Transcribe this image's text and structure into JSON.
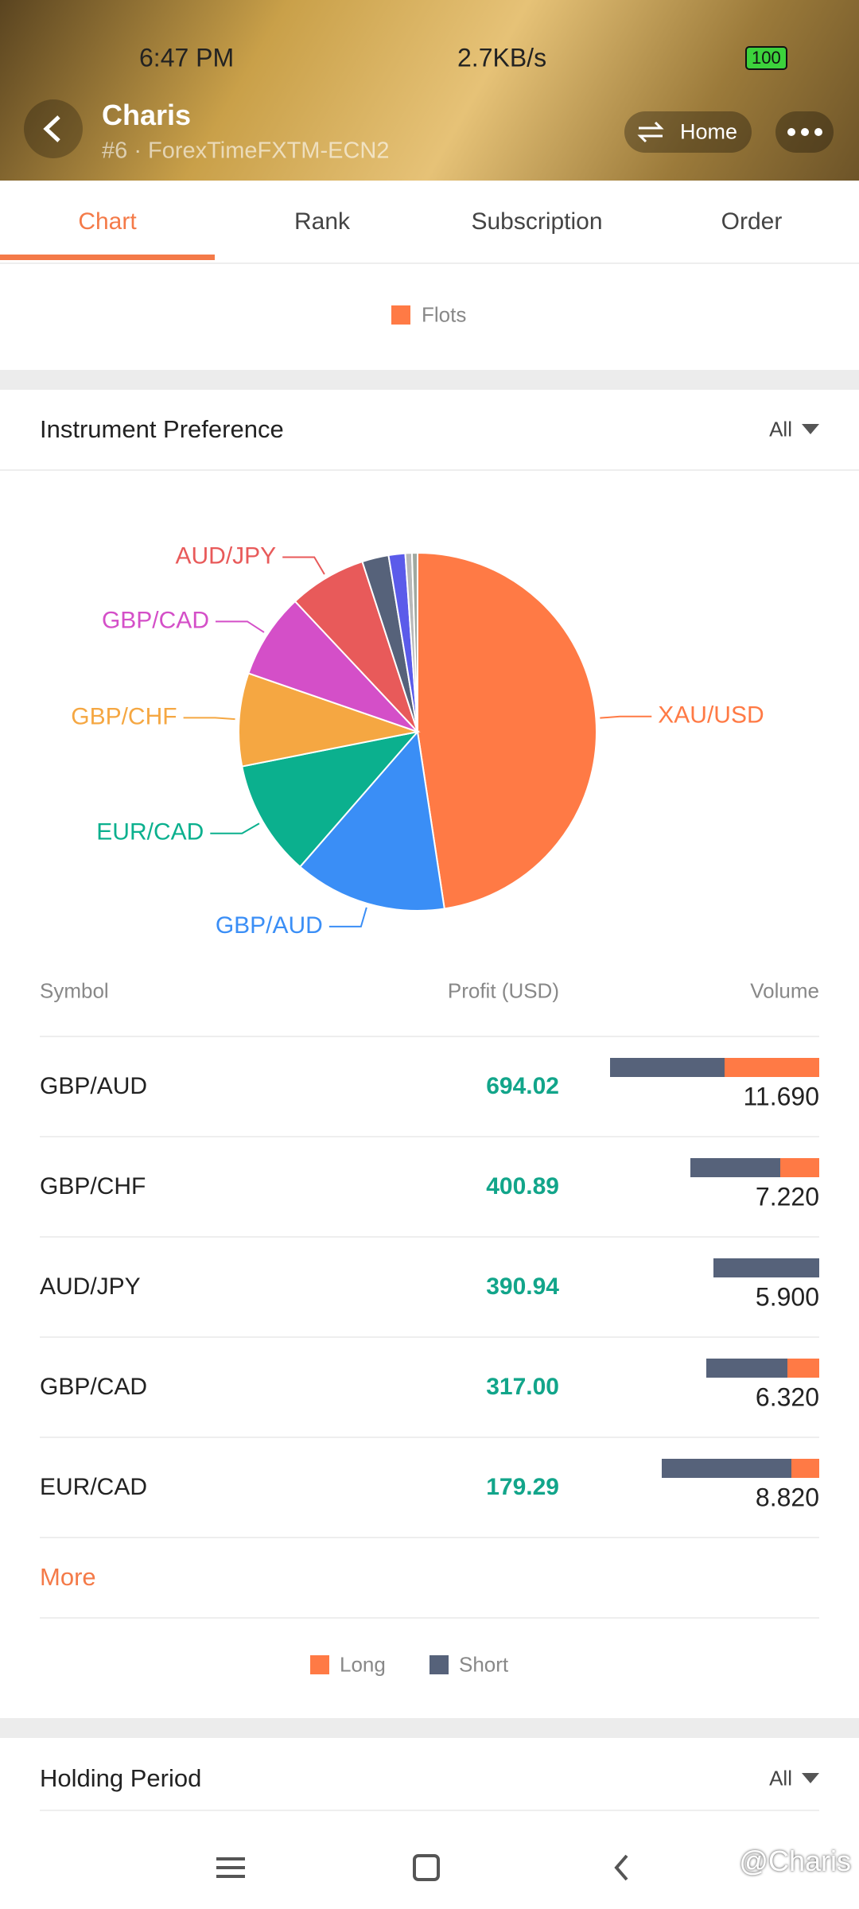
{
  "status_bar": {
    "time": "6:47 PM",
    "speed": "2.7KB/s",
    "battery": "100"
  },
  "header": {
    "name": "Charis",
    "subtitle": "#6 · ForexTimeFXTM-ECN2",
    "home": "Home"
  },
  "tabs": [
    "Chart",
    "Rank",
    "Subscription",
    "Order"
  ],
  "chart_legend": {
    "name": "Flots",
    "color": "#ff7a45"
  },
  "instrument_preference": {
    "title": "Instrument Preference",
    "filter": "All",
    "chart_data": {
      "type": "pie",
      "labels": [
        "XAU/USD",
        "GBP/AUD",
        "EUR/CAD",
        "GBP/CHF",
        "GBP/CAD",
        "AUD/JPY",
        null,
        null,
        null,
        null
      ],
      "values": [
        47.6,
        13.8,
        10.5,
        8.4,
        7.7,
        7.0,
        2.4,
        1.5,
        0.6,
        0.5
      ],
      "colors": [
        "#ff7a45",
        "#3a8ef6",
        "#0bb08e",
        "#f5a742",
        "#d44fc8",
        "#e85a5a",
        "#56627a",
        "#5b5bea",
        "#b8b8b8",
        "#a0a8a0"
      ]
    },
    "table": {
      "columns": [
        "Symbol",
        "Profit (USD)",
        "Volume"
      ],
      "rows": [
        {
          "symbol": "GBP/AUD",
          "profit": "694.02",
          "volume": "11.690",
          "long": 5.3,
          "short": 6.39
        },
        {
          "symbol": "GBP/CHF",
          "profit": "400.89",
          "volume": "7.220",
          "long": 2.19,
          "short": 5.03
        },
        {
          "symbol": "AUD/JPY",
          "profit": "390.94",
          "volume": "5.900",
          "long": 0,
          "short": 5.9
        },
        {
          "symbol": "GBP/CAD",
          "profit": "317.00",
          "volume": "6.320",
          "long": 1.77,
          "short": 4.55
        },
        {
          "symbol": "EUR/CAD",
          "profit": "179.29",
          "volume": "8.820",
          "long": 1.55,
          "short": 7.27
        }
      ]
    },
    "more": "More",
    "legend": [
      {
        "name": "Long",
        "color": "#ff7a45"
      },
      {
        "name": "Short",
        "color": "#56627a"
      }
    ]
  },
  "holding_period": {
    "title": "Holding Period",
    "filter": "All"
  },
  "watermark": "@Charis"
}
